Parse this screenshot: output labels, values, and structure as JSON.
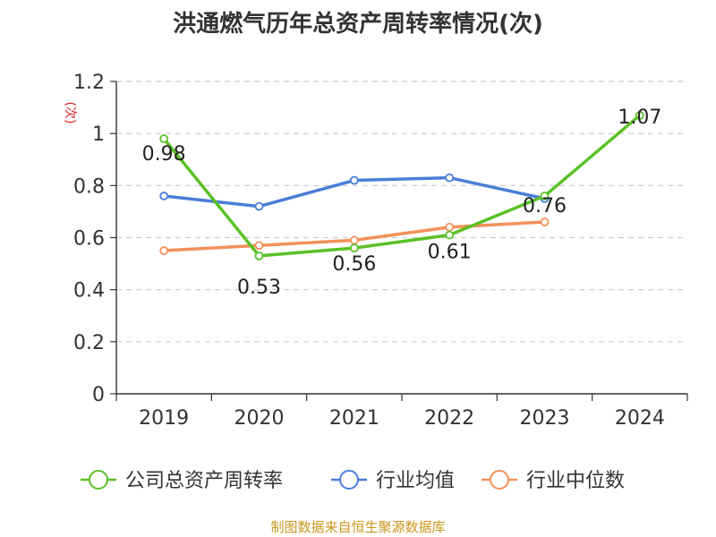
{
  "chart_data": {
    "type": "line",
    "title": "洪通燃气历年总资产周转率情况(次)",
    "ylabel": "(次)",
    "categories": [
      "2019",
      "2020",
      "2021",
      "2022",
      "2023",
      "2024"
    ],
    "ylim": [
      0,
      1.2
    ],
    "yticks": [
      "0",
      "0.2",
      "0.4",
      "0.6",
      "0.8",
      "1",
      "1.2"
    ],
    "grid": true,
    "legend_position": "bottom",
    "series": [
      {
        "name": "公司总资产周转率",
        "color": "#5ac126",
        "values": [
          0.98,
          0.53,
          0.56,
          0.61,
          0.76,
          1.07
        ],
        "labels": [
          "0.98",
          "0.53",
          "0.56",
          "0.61",
          "0.76",
          "1.07"
        ]
      },
      {
        "name": "行业均值",
        "color": "#4a7ed8",
        "values": [
          0.76,
          0.72,
          0.82,
          0.83,
          0.75,
          null
        ]
      },
      {
        "name": "行业中位数",
        "color": "#f4905a",
        "values": [
          0.55,
          0.57,
          0.59,
          0.64,
          0.66,
          null
        ]
      }
    ]
  },
  "source": "制图数据来自恒生聚源数据库"
}
